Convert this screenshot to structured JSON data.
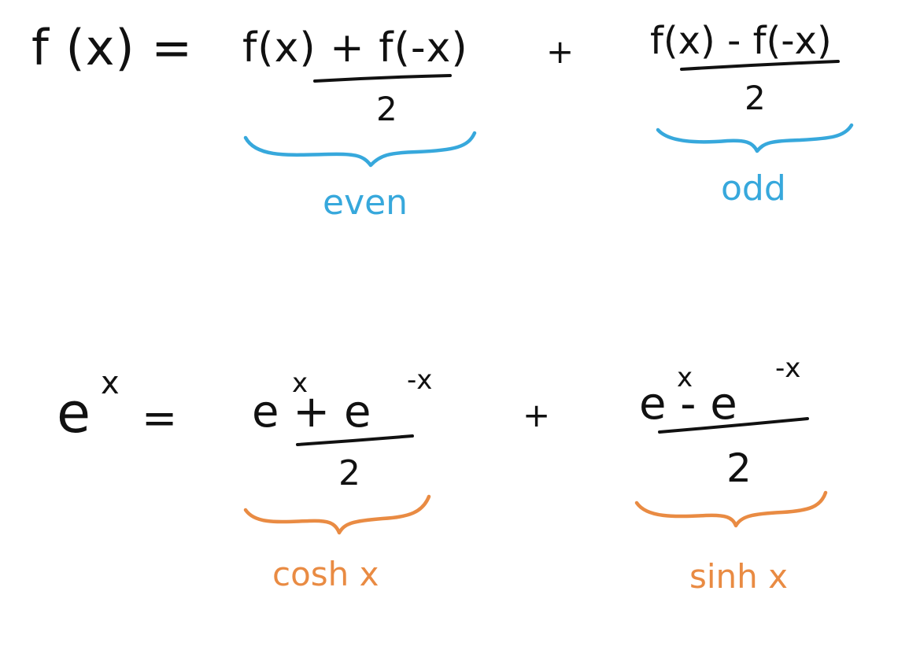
{
  "math": {
    "row1": {
      "lhs": "f (x) =",
      "num_left": "f(x) + f(-x)",
      "den_left": "2",
      "plus": "+",
      "num_right": "f(x) - f(-x)",
      "den_right": "2",
      "label_left": "even",
      "label_right": "odd"
    },
    "row2": {
      "lhs_base": "e",
      "lhs_sup": "x",
      "equals": "=",
      "num_left": "e   + e",
      "num_left_sup1": "x",
      "num_left_sup2": "-x",
      "den_left": "2",
      "plus": "+",
      "num_right": "e   - e",
      "num_right_sup1": "x",
      "num_right_sup2": "-x",
      "den_right": "2",
      "label_left": "cosh x",
      "label_right": "sinh x"
    }
  },
  "colors": {
    "ink": "#111111",
    "blue": "#37a8dc",
    "orange": "#e98b43"
  }
}
